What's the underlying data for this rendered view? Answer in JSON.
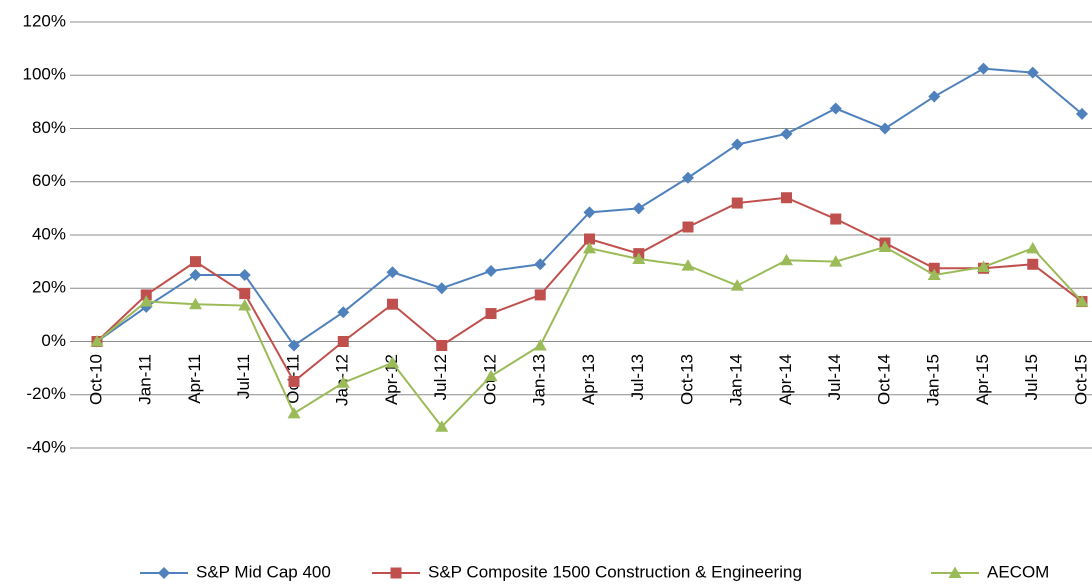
{
  "chart_data": {
    "type": "line",
    "categories": [
      "Oct-10",
      "Jan-11",
      "Apr-11",
      "Jul-11",
      "Oct-11",
      "Jan-12",
      "Apr-12",
      "Jul-12",
      "Oct-12",
      "Jan-13",
      "Apr-13",
      "Jul-13",
      "Oct-13",
      "Jan-14",
      "Apr-14",
      "Jul-14",
      "Oct-14",
      "Jan-15",
      "Apr-15",
      "Jul-15",
      "Oct-15"
    ],
    "series": [
      {
        "name": "S&P Mid Cap 400",
        "color": "#4F81BD",
        "marker": "diamond",
        "values": [
          0,
          13,
          25,
          25,
          -1.5,
          11,
          26,
          20,
          26.5,
          29,
          48.5,
          50,
          61.5,
          74,
          78,
          87.5,
          80,
          92,
          102.5,
          101,
          85.5
        ]
      },
      {
        "name": "S&P Composite 1500 Construction & Engineering",
        "color": "#C0504D",
        "marker": "square",
        "values": [
          0,
          17.5,
          30,
          18,
          -15,
          0,
          14,
          -1.5,
          10.5,
          17.5,
          38.5,
          33,
          43,
          52,
          54,
          46,
          37,
          27.5,
          27.5,
          29,
          15
        ]
      },
      {
        "name": "AECOM",
        "color": "#9BBB59",
        "marker": "triangle",
        "values": [
          0,
          15,
          14,
          13.5,
          -27,
          -15.5,
          -8,
          -32,
          -13,
          -1.5,
          35,
          31,
          28.5,
          21,
          30.5,
          30,
          35.5,
          25,
          28,
          35,
          15
        ]
      }
    ],
    "ylim": [
      -40,
      120
    ],
    "yticks": [
      {
        "value": -40,
        "label": "-40%"
      },
      {
        "value": -20,
        "label": "-20%"
      },
      {
        "value": 0,
        "label": "0%"
      },
      {
        "value": 20,
        "label": "20%"
      },
      {
        "value": 40,
        "label": "40%"
      },
      {
        "value": 60,
        "label": "60%"
      },
      {
        "value": 80,
        "label": "80%"
      },
      {
        "value": 100,
        "label": "100%"
      },
      {
        "value": 120,
        "label": "120%"
      }
    ],
    "grid": true,
    "legend": "bottom"
  }
}
